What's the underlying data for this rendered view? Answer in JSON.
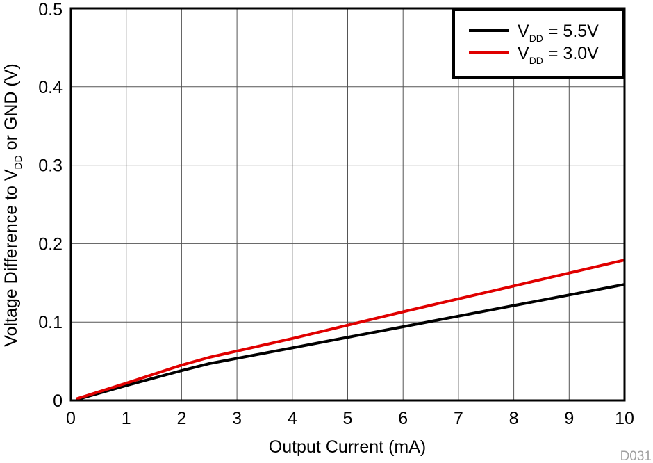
{
  "chart_data": {
    "type": "line",
    "title": "",
    "xlabel": "Output Current (mA)",
    "ylabel": {
      "prefix": "Voltage Difference to V",
      "subscript": "DD",
      "suffix": " or GND (V)"
    },
    "xlim": [
      0,
      10
    ],
    "ylim": [
      0,
      0.5
    ],
    "x_ticks": [
      "0",
      "1",
      "2",
      "3",
      "4",
      "5",
      "6",
      "7",
      "8",
      "9",
      "10"
    ],
    "y_ticks": [
      "0",
      "0.1",
      "0.2",
      "0.3",
      "0.4",
      "0.5"
    ],
    "grid": true,
    "legend_position": "top-right",
    "series": [
      {
        "name": "VDD = 5.5V",
        "label_main": "V",
        "label_sub": "DD",
        "label_rest": " = 5.5V",
        "color": "#000000",
        "x": [
          0.1,
          1,
          2,
          2.5,
          4,
          6,
          8,
          10
        ],
        "y": [
          0.001,
          0.019,
          0.038,
          0.047,
          0.067,
          0.094,
          0.121,
          0.148
        ]
      },
      {
        "name": "VDD = 3.0V",
        "label_main": "V",
        "label_sub": "DD",
        "label_rest": " = 3.0V",
        "color": "#e00000",
        "x": [
          0.1,
          1,
          2,
          2.5,
          4,
          6,
          8,
          10
        ],
        "y": [
          0.002,
          0.022,
          0.045,
          0.055,
          0.079,
          0.113,
          0.146,
          0.179
        ]
      }
    ],
    "figure_code": "D031"
  }
}
